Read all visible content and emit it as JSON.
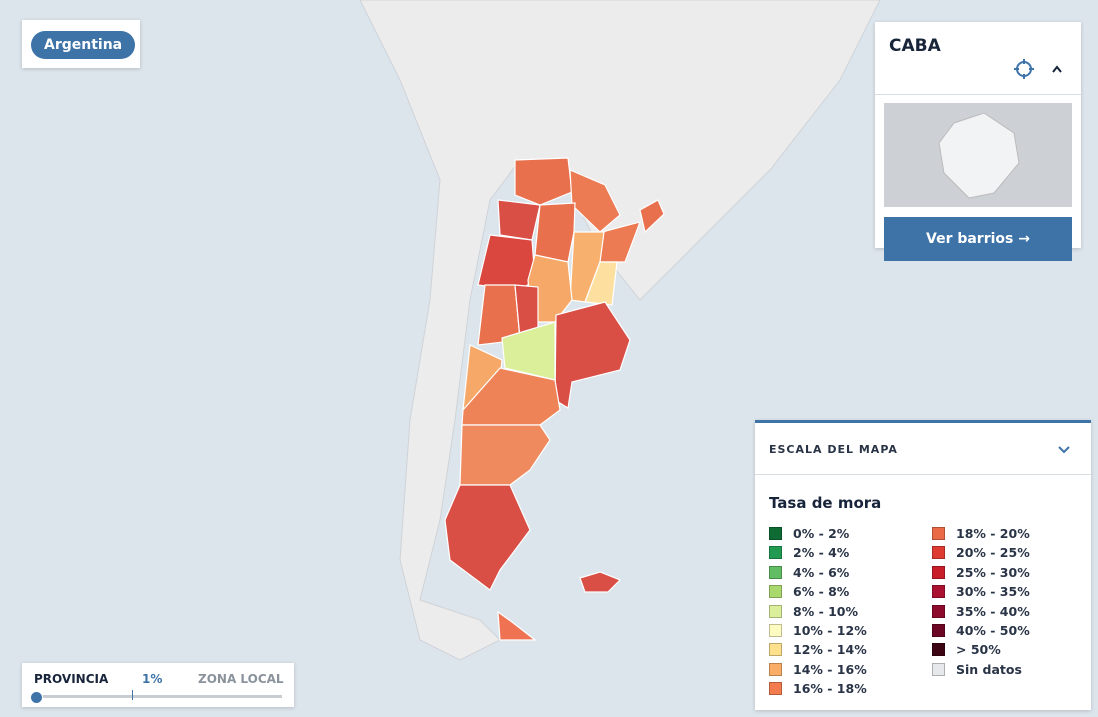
{
  "region_chip": "Argentina",
  "caba_panel": {
    "title": "CABA",
    "button": "Ver barrios →"
  },
  "legend": {
    "header": "ESCALA DEL MAPA",
    "title": "Tasa de mora",
    "items": [
      {
        "label": "0% - 2%",
        "color": "#0e6b34"
      },
      {
        "label": "2% - 4%",
        "color": "#229a52"
      },
      {
        "label": "4% - 6%",
        "color": "#62bc64"
      },
      {
        "label": "6% - 8%",
        "color": "#a9d86c"
      },
      {
        "label": "8% - 10%",
        "color": "#dbee9a"
      },
      {
        "label": "10% - 12%",
        "color": "#fefbc0"
      },
      {
        "label": "12% - 14%",
        "color": "#fde08c"
      },
      {
        "label": "14% - 16%",
        "color": "#f9ad66"
      },
      {
        "label": "16% - 18%",
        "color": "#f27c4e"
      },
      {
        "label": "18% - 20%",
        "color": "#ea6a47"
      },
      {
        "label": "20% - 25%",
        "color": "#de3b32"
      },
      {
        "label": "25% - 30%",
        "color": "#c81e2a"
      },
      {
        "label": "30% - 35%",
        "color": "#aa1030"
      },
      {
        "label": "35% - 40%",
        "color": "#8c0a2c"
      },
      {
        "label": "40% - 50%",
        "color": "#6b0624"
      },
      {
        "label": "> 50%",
        "color": "#3d0414"
      },
      {
        "label": "Sin datos",
        "color": "#e6e8eb"
      }
    ]
  },
  "slider": {
    "left_label": "PROVINCIA",
    "value_label": "1%",
    "right_label": "ZONA LOCAL"
  }
}
